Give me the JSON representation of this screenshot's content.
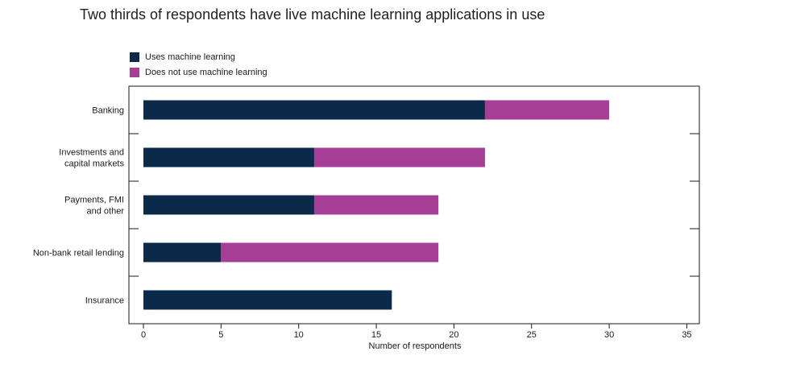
{
  "chart_data": {
    "type": "bar",
    "stacked": true,
    "orientation": "horizontal",
    "title": "Two thirds of respondents have live machine learning applications in use",
    "xlabel": "Number of respondents",
    "ylabel": "",
    "xlim": [
      0,
      35
    ],
    "xticks": [
      0,
      5,
      10,
      15,
      20,
      25,
      30,
      35
    ],
    "grid": false,
    "legend_position": "top-left",
    "categories": [
      [
        "Banking"
      ],
      [
        "Investments and",
        "capital markets"
      ],
      [
        "Payments, FMI",
        "and other"
      ],
      [
        "Non-bank retail lending"
      ],
      [
        "Insurance"
      ]
    ],
    "series": [
      {
        "name": "Uses machine learning",
        "color": "#0b2a4a",
        "values": [
          22,
          11,
          11,
          5,
          16
        ]
      },
      {
        "name": "Does not use machine learning",
        "color": "#a63e96",
        "values": [
          8,
          11,
          8,
          14,
          0
        ]
      }
    ]
  }
}
